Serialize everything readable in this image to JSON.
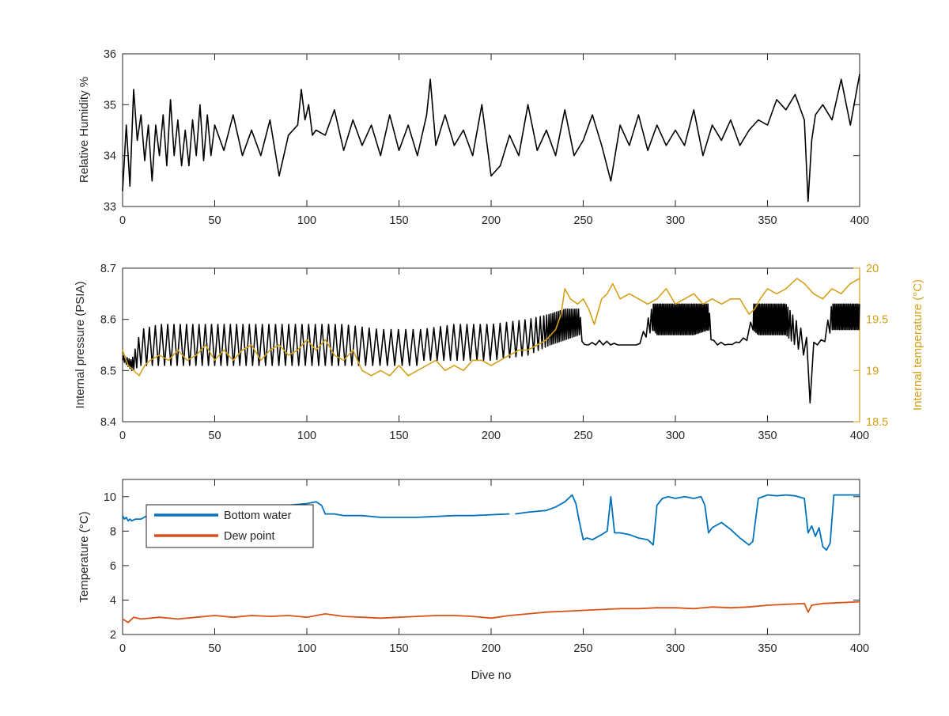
{
  "chart_data": [
    {
      "type": "line",
      "xlabel": "",
      "ylabel": "Relative Humidity %",
      "xlim": [
        0,
        400
      ],
      "ylim": [
        33,
        36
      ],
      "xticks": [
        0,
        50,
        100,
        150,
        200,
        250,
        300,
        350,
        400
      ],
      "yticks": [
        33,
        34,
        35,
        36
      ],
      "xtick_labels": [
        "0",
        "50",
        "100",
        "150",
        "200",
        "250",
        "300",
        "350",
        "400"
      ],
      "ytick_labels": [
        "33",
        "34",
        "35",
        "36"
      ],
      "grid": false,
      "series": [
        {
          "color": "#000000",
          "x": [
            0,
            2,
            4,
            6,
            8,
            10,
            12,
            14,
            16,
            18,
            20,
            22,
            24,
            26,
            28,
            30,
            32,
            34,
            36,
            38,
            40,
            42,
            44,
            46,
            48,
            50,
            55,
            60,
            65,
            70,
            75,
            80,
            85,
            90,
            95,
            97,
            99,
            101,
            103,
            105,
            110,
            115,
            120,
            125,
            130,
            135,
            140,
            145,
            150,
            155,
            160,
            165,
            167,
            170,
            175,
            180,
            185,
            190,
            195,
            200,
            205,
            210,
            215,
            220,
            225,
            230,
            235,
            240,
            245,
            250,
            255,
            260,
            265,
            270,
            275,
            280,
            285,
            290,
            295,
            300,
            305,
            310,
            315,
            320,
            325,
            330,
            335,
            340,
            345,
            350,
            355,
            360,
            365,
            370,
            372,
            374,
            376,
            380,
            385,
            390,
            395,
            400
          ],
          "y": [
            33.3,
            34.6,
            33.4,
            35.3,
            34.3,
            34.8,
            33.9,
            34.6,
            33.5,
            34.6,
            34.0,
            34.8,
            33.8,
            35.1,
            34.0,
            34.7,
            33.8,
            34.5,
            33.8,
            34.7,
            34.0,
            35.0,
            33.9,
            34.8,
            34.0,
            34.6,
            34.1,
            34.8,
            34.0,
            34.5,
            34.0,
            34.7,
            33.6,
            34.4,
            34.6,
            35.3,
            34.7,
            35.0,
            34.4,
            34.5,
            34.4,
            34.9,
            34.1,
            34.7,
            34.2,
            34.6,
            34.0,
            34.8,
            34.1,
            34.6,
            34.0,
            34.8,
            35.5,
            34.2,
            34.8,
            34.2,
            34.5,
            34.0,
            35.0,
            33.6,
            33.8,
            34.4,
            34.0,
            35.0,
            34.1,
            34.5,
            34.0,
            34.9,
            34.0,
            34.3,
            34.8,
            34.2,
            33.5,
            34.6,
            34.2,
            34.8,
            34.1,
            34.6,
            34.2,
            34.5,
            34.2,
            34.9,
            34.0,
            34.6,
            34.3,
            34.7,
            34.2,
            34.5,
            34.7,
            34.6,
            35.1,
            34.9,
            35.2,
            34.7,
            33.1,
            34.3,
            34.8,
            35.0,
            34.7,
            35.5,
            34.6,
            35.6
          ]
        }
      ]
    },
    {
      "type": "line",
      "xlabel": "",
      "ylabel": "Internal pressure (PSIA)",
      "ylabel_right": "Internal temperature (°C)",
      "xlim": [
        0,
        400
      ],
      "ylim": [
        8.4,
        8.7
      ],
      "ylim_right": [
        18.5,
        20
      ],
      "xticks": [
        0,
        50,
        100,
        150,
        200,
        250,
        300,
        350,
        400
      ],
      "yticks": [
        8.4,
        8.5,
        8.6,
        8.7
      ],
      "yticks_right": [
        18.5,
        19,
        19.5,
        20
      ],
      "xtick_labels": [
        "0",
        "50",
        "100",
        "150",
        "200",
        "250",
        "300",
        "350",
        "400"
      ],
      "ytick_labels": [
        "8.4",
        "8.5",
        "8.6",
        "8.7"
      ],
      "ytick_labels_right": [
        "18.5",
        "19",
        "19.5",
        "20"
      ],
      "grid": false,
      "series": [
        {
          "color": "#000000",
          "axis": "left",
          "oscillating": true,
          "x": [
            0,
            5,
            10,
            20,
            40,
            60,
            80,
            100,
            120,
            140,
            160,
            162,
            180,
            200,
            220,
            232,
            240,
            248,
            250,
            260,
            270,
            280,
            288,
            290,
            300,
            310,
            318,
            320,
            330,
            340,
            342,
            345,
            360,
            372,
            373,
            374,
            376,
            380,
            385,
            390,
            400
          ],
          "lo": [
            8.52,
            8.5,
            8.51,
            8.51,
            8.51,
            8.51,
            8.51,
            8.51,
            8.51,
            8.51,
            8.51,
            8.52,
            8.52,
            8.52,
            8.53,
            8.55,
            8.56,
            8.57,
            8.55,
            8.55,
            8.55,
            8.55,
            8.58,
            8.57,
            8.57,
            8.57,
            8.58,
            8.55,
            8.55,
            8.56,
            8.58,
            8.57,
            8.57,
            8.52,
            8.43,
            8.5,
            8.55,
            8.55,
            8.58,
            8.58,
            8.58
          ],
          "hi": [
            8.53,
            8.52,
            8.58,
            8.59,
            8.59,
            8.59,
            8.59,
            8.59,
            8.59,
            8.58,
            8.58,
            8.58,
            8.59,
            8.59,
            8.6,
            8.61,
            8.62,
            8.62,
            8.55,
            8.56,
            8.55,
            8.55,
            8.63,
            8.63,
            8.63,
            8.63,
            8.63,
            8.56,
            8.55,
            8.57,
            8.63,
            8.63,
            8.63,
            8.56,
            8.43,
            8.55,
            8.56,
            8.56,
            8.63,
            8.63,
            8.63
          ],
          "period": [
            1,
            1,
            3,
            3.4,
            3.4,
            3.4,
            3.6,
            3.6,
            3.6,
            4,
            4,
            3.6,
            3.6,
            3.6,
            3.2,
            1,
            1,
            1,
            4,
            4,
            4,
            4,
            0.8,
            0.8,
            0.8,
            0.8,
            0.8,
            4,
            4,
            4,
            0.8,
            0.8,
            0.8,
            4,
            4,
            4,
            4,
            4,
            0.8,
            0.8,
            0.8
          ]
        },
        {
          "color": "#d4a017",
          "axis": "right",
          "x": [
            0,
            3,
            6,
            9,
            12,
            15,
            20,
            25,
            30,
            35,
            40,
            45,
            50,
            55,
            60,
            65,
            70,
            75,
            80,
            85,
            90,
            95,
            100,
            105,
            110,
            115,
            120,
            125,
            130,
            135,
            140,
            145,
            150,
            155,
            160,
            165,
            170,
            175,
            180,
            185,
            190,
            195,
            200,
            205,
            210,
            215,
            220,
            225,
            230,
            235,
            238,
            240,
            243,
            247,
            250,
            253,
            256,
            260,
            263,
            266,
            270,
            275,
            280,
            285,
            290,
            295,
            300,
            305,
            310,
            315,
            320,
            325,
            330,
            335,
            340,
            343,
            346,
            350,
            355,
            360,
            363,
            366,
            370,
            375,
            380,
            385,
            390,
            395,
            400
          ],
          "y": [
            19.2,
            19.05,
            19.0,
            18.95,
            19.05,
            19.1,
            19.15,
            19.1,
            19.2,
            19.1,
            19.15,
            19.25,
            19.1,
            19.2,
            19.1,
            19.2,
            19.25,
            19.1,
            19.2,
            19.25,
            19.15,
            19.2,
            19.3,
            19.2,
            19.3,
            19.15,
            19.1,
            19.2,
            19.0,
            18.95,
            19.0,
            18.95,
            19.05,
            18.95,
            19.0,
            19.05,
            19.1,
            19.0,
            19.05,
            19.0,
            19.1,
            19.1,
            19.05,
            19.1,
            19.15,
            19.2,
            19.2,
            19.25,
            19.3,
            19.4,
            19.55,
            19.8,
            19.7,
            19.65,
            19.7,
            19.6,
            19.45,
            19.7,
            19.75,
            19.85,
            19.7,
            19.75,
            19.7,
            19.65,
            19.7,
            19.8,
            19.65,
            19.7,
            19.75,
            19.65,
            19.7,
            19.65,
            19.7,
            19.7,
            19.55,
            19.6,
            19.7,
            19.8,
            19.75,
            19.8,
            19.85,
            19.9,
            19.85,
            19.75,
            19.7,
            19.8,
            19.75,
            19.85,
            19.9
          ]
        }
      ]
    },
    {
      "type": "line",
      "xlabel": "Dive no",
      "ylabel": "Temperature (°C)",
      "xlim": [
        0,
        400
      ],
      "ylim": [
        2,
        11
      ],
      "xticks": [
        0,
        50,
        100,
        150,
        200,
        250,
        300,
        350,
        400
      ],
      "yticks": [
        2,
        4,
        6,
        8,
        10
      ],
      "xtick_labels": [
        "0",
        "50",
        "100",
        "150",
        "200",
        "250",
        "300",
        "350",
        "400"
      ],
      "ytick_labels": [
        "2",
        "4",
        "6",
        "8",
        "10"
      ],
      "grid": false,
      "legend": "top-left",
      "series": [
        {
          "name": "Bottom water",
          "color": "#0072bd",
          "x": [
            0,
            1,
            2,
            3,
            4,
            5,
            7,
            10,
            15,
            20,
            25,
            30,
            40,
            50,
            60,
            70,
            80,
            90,
            100,
            105,
            108,
            110,
            115,
            120,
            130,
            140,
            150,
            160,
            170,
            180,
            190,
            200,
            210,
            null,
            213,
            220,
            230,
            235,
            240,
            244,
            246,
            248,
            250,
            252,
            255,
            260,
            263,
            265,
            267,
            270,
            275,
            280,
            285,
            288,
            290,
            293,
            296,
            300,
            305,
            310,
            314,
            316,
            318,
            320,
            325,
            330,
            335,
            340,
            342,
            345,
            350,
            355,
            360,
            365,
            370,
            372,
            374,
            376,
            378,
            380,
            382,
            384,
            386,
            390,
            400
          ],
          "y": [
            8.9,
            8.7,
            8.8,
            8.6,
            8.7,
            8.6,
            8.7,
            8.7,
            9.0,
            9.1,
            9.1,
            9.2,
            9.2,
            9.3,
            9.3,
            9.4,
            9.5,
            9.5,
            9.6,
            9.7,
            9.5,
            9.0,
            9.0,
            8.9,
            8.9,
            8.8,
            8.8,
            8.8,
            8.85,
            8.9,
            8.9,
            8.95,
            9.0,
            null,
            9.0,
            9.1,
            9.2,
            9.4,
            9.7,
            10.1,
            9.6,
            8.5,
            7.5,
            7.6,
            7.5,
            7.8,
            8.0,
            10.0,
            7.9,
            7.9,
            7.8,
            7.6,
            7.5,
            7.2,
            9.5,
            9.9,
            10.0,
            9.9,
            10.0,
            9.9,
            10.0,
            9.5,
            7.9,
            8.2,
            8.5,
            8.1,
            7.6,
            7.2,
            7.4,
            9.9,
            10.1,
            10.05,
            10.1,
            10.05,
            9.9,
            7.9,
            8.3,
            7.7,
            8.2,
            7.1,
            6.9,
            7.3,
            10.1,
            10.1,
            10.1
          ]
        },
        {
          "name": "Dew point",
          "color": "#d95319",
          "x": [
            0,
            3,
            6,
            10,
            20,
            30,
            40,
            50,
            60,
            70,
            80,
            90,
            100,
            110,
            120,
            130,
            140,
            150,
            160,
            170,
            180,
            190,
            200,
            210,
            220,
            230,
            240,
            250,
            260,
            270,
            280,
            290,
            300,
            310,
            320,
            330,
            340,
            350,
            360,
            370,
            372,
            374,
            380,
            390,
            400
          ],
          "y": [
            2.9,
            2.7,
            3.0,
            2.9,
            3.0,
            2.9,
            3.0,
            3.1,
            3.0,
            3.1,
            3.05,
            3.1,
            3.0,
            3.2,
            3.05,
            3.0,
            2.95,
            3.0,
            3.05,
            3.1,
            3.1,
            3.05,
            2.95,
            3.1,
            3.2,
            3.3,
            3.35,
            3.4,
            3.45,
            3.5,
            3.5,
            3.55,
            3.55,
            3.5,
            3.6,
            3.55,
            3.6,
            3.7,
            3.75,
            3.8,
            3.3,
            3.7,
            3.8,
            3.85,
            3.9
          ]
        }
      ]
    }
  ]
}
